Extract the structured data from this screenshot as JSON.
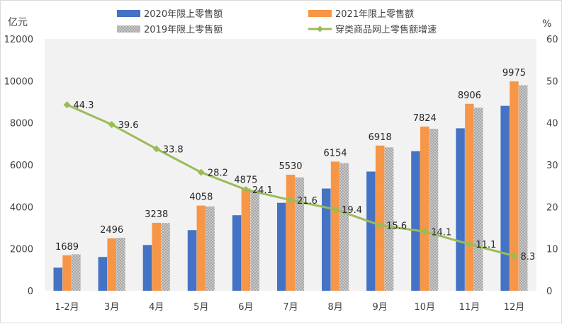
{
  "chart_data": {
    "type": "bar",
    "title": "",
    "categories": [
      "1-2月",
      "3月",
      "4月",
      "5月",
      "6月",
      "7月",
      "8月",
      "9月",
      "10月",
      "11月",
      "12月"
    ],
    "series": [
      {
        "name": "2020年限上零售额",
        "kind": "bar",
        "axis": "left",
        "color": "#4472C4",
        "values": [
          1100,
          1610,
          2180,
          2890,
          3600,
          4190,
          4870,
          5680,
          6650,
          7740,
          8810
        ]
      },
      {
        "name": "2021年限上零售额",
        "kind": "bar",
        "axis": "left",
        "color": "#F79646",
        "values": [
          1689,
          2496,
          3238,
          4058,
          4875,
          5530,
          6154,
          6918,
          7824,
          8906,
          9975
        ]
      },
      {
        "name": "2019年限上零售额",
        "kind": "bar",
        "axis": "left",
        "color": "#A6A6A6",
        "values": [
          1740,
          2520,
          3230,
          4020,
          4780,
          5400,
          6080,
          6830,
          7720,
          8720,
          9790
        ]
      },
      {
        "name": "穿类商品网上零售额增速",
        "kind": "line",
        "axis": "right",
        "color": "#9BBB59",
        "values": [
          44.3,
          39.6,
          33.8,
          28.2,
          24.1,
          21.6,
          19.4,
          15.6,
          14.1,
          11.1,
          8.3
        ]
      }
    ],
    "left_axis": {
      "label": "亿元",
      "range": [
        0,
        12000
      ],
      "ticks": [
        "0",
        "2000",
        "4000",
        "6000",
        "8000",
        "10000",
        "12000"
      ]
    },
    "right_axis": {
      "label": "%",
      "range": [
        0,
        60
      ],
      "ticks": [
        "0",
        "10",
        "20",
        "30",
        "40",
        "50",
        "60"
      ]
    },
    "bar_data_labels": [
      "1689",
      "2496",
      "3238",
      "4058",
      "4875",
      "5530",
      "6154",
      "6918",
      "7824",
      "8906",
      "9975"
    ],
    "line_data_labels": [
      "44.3",
      "39.6",
      "33.8",
      "28.2",
      "24.1",
      "21.6",
      "19.4",
      "15.6",
      "14.1",
      "11.1",
      "8.3"
    ],
    "legend_position": "top",
    "grid": false
  }
}
